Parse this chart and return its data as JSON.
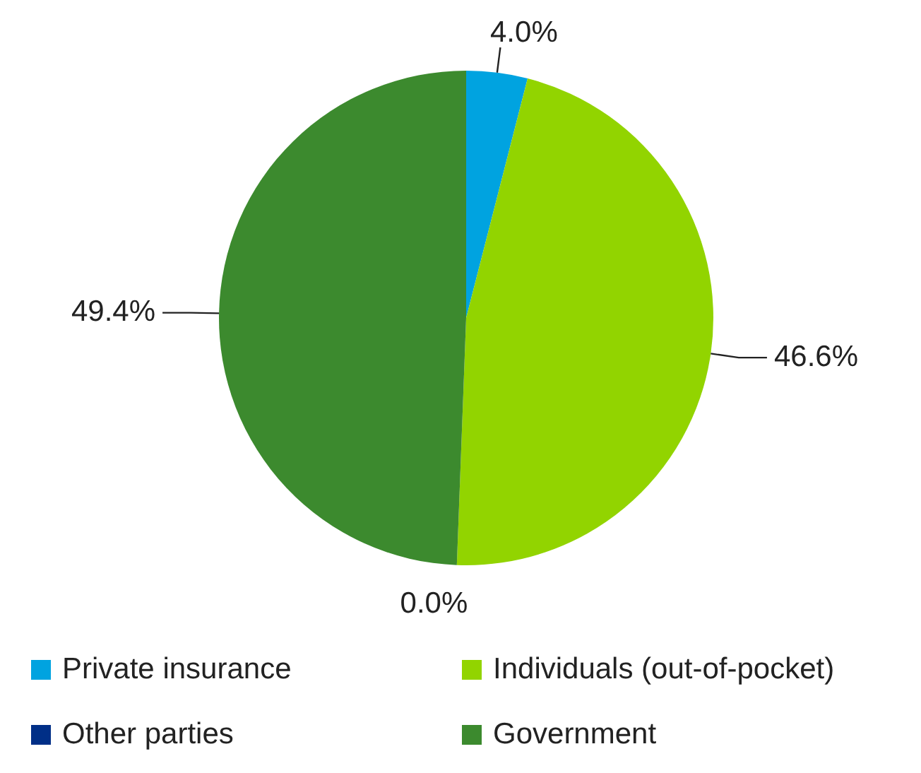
{
  "chart_data": {
    "type": "pie",
    "categories": [
      "Private insurance",
      "Individuals (out-of-pocket)",
      "Other parties",
      "Government"
    ],
    "values": [
      4.0,
      46.6,
      0.0,
      49.4
    ],
    "colors": [
      "#00a3e0",
      "#92d400",
      "#002f87",
      "#3c8a2e"
    ],
    "value_labels": [
      "4.0%",
      "46.6%",
      "0.0%",
      "49.4%"
    ],
    "legend": "bottom"
  }
}
